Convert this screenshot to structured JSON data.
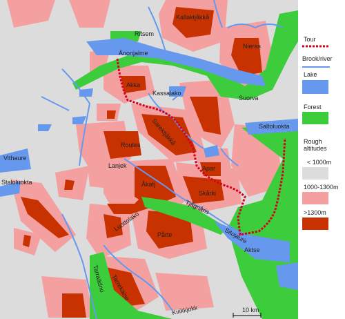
{
  "map": {
    "labels": [
      "Kallaktjåkkå",
      "Ritsem",
      "Nieras",
      "Änonjalme",
      "Akka",
      "Kassalako",
      "Suorva",
      "Saltoluokta",
      "Sarektjåkkå",
      "Routes",
      "Lanjek",
      "Åkatj",
      "Apar",
      "Skårki",
      "Vithaure",
      "Staloluokta",
      "Tjågnåris",
      "Luottolako",
      "Pårte",
      "Sitojaure",
      "Aktse",
      "Tarrekaise",
      "Tarraädno",
      "Kvikkjokk"
    ],
    "scale": "10 km"
  },
  "legend": {
    "tour": "Tour",
    "river": "Brook/river",
    "lake": "Lake",
    "forest": "Forest",
    "altitudes": "Rough altitudes",
    "low": "< 1000m",
    "mid": "1000-1300m",
    "high": ">1300m"
  }
}
